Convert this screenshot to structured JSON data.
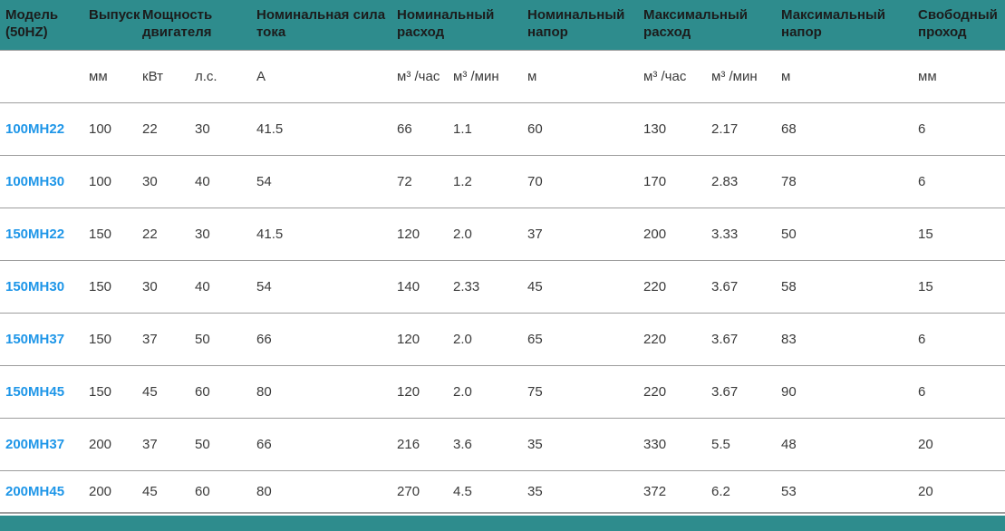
{
  "theme": {
    "teal": "#2e8c8d",
    "link_blue": "#1e96e8",
    "header_text": "#1c1c1c",
    "body_text": "#3a3a3a",
    "rule_gray": "#9d9d9d"
  },
  "table": {
    "groups": [
      {
        "label": "Модель (50HZ)"
      },
      {
        "label": "Выпуск"
      },
      {
        "label": "Мощность двигателя"
      },
      {
        "label": "Номинальная сила тока"
      },
      {
        "label": "Номинальный расход"
      },
      {
        "label": "Номинальный напор"
      },
      {
        "label": "Максимальный расход"
      },
      {
        "label": "Максимальный напор"
      },
      {
        "label": "Свободный проход"
      }
    ],
    "units": [
      "",
      "мм",
      "кВт",
      "л.с.",
      "А",
      "м³ /час",
      "м³ /мин",
      "м",
      "м³ /час",
      "м³ /мин",
      "м",
      "мм"
    ],
    "rows": [
      {
        "model": "100MH22",
        "values": [
          "100",
          "22",
          "30",
          "41.5",
          "66",
          "1.1",
          "60",
          "130",
          "2.17",
          "68",
          "6"
        ]
      },
      {
        "model": "100MH30",
        "values": [
          "100",
          "30",
          "40",
          "54",
          "72",
          "1.2",
          "70",
          "170",
          "2.83",
          "78",
          "6"
        ]
      },
      {
        "model": "150MH22",
        "values": [
          "150",
          "22",
          "30",
          "41.5",
          "120",
          "2.0",
          "37",
          "200",
          "3.33",
          "50",
          "15"
        ]
      },
      {
        "model": "150MH30",
        "values": [
          "150",
          "30",
          "40",
          "54",
          "140",
          "2.33",
          "45",
          "220",
          "3.67",
          "58",
          "15"
        ]
      },
      {
        "model": "150MH37",
        "values": [
          "150",
          "37",
          "50",
          "66",
          "120",
          "2.0",
          "65",
          "220",
          "3.67",
          "83",
          "6"
        ]
      },
      {
        "model": "150MH45",
        "values": [
          "150",
          "45",
          "60",
          "80",
          "120",
          "2.0",
          "75",
          "220",
          "3.67",
          "90",
          "6"
        ]
      },
      {
        "model": "200MH37",
        "values": [
          "200",
          "37",
          "50",
          "66",
          "216",
          "3.6",
          "35",
          "330",
          "5.5",
          "48",
          "20"
        ]
      },
      {
        "model": "200MH45",
        "values": [
          "200",
          "45",
          "60",
          "80",
          "270",
          "4.5",
          "35",
          "372",
          "6.2",
          "53",
          "20"
        ]
      }
    ]
  }
}
